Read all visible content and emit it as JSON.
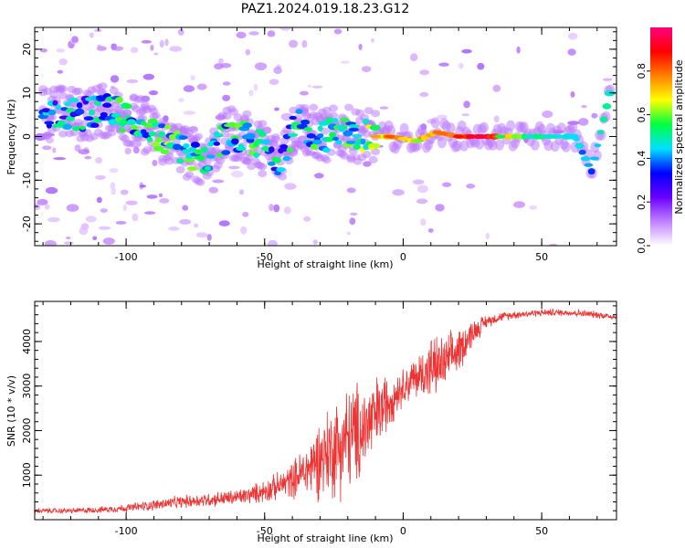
{
  "title": "PAZ1.2024.019.18.23.G12",
  "chart_data": [
    {
      "type": "heatmap",
      "xlabel": "Height of straight line (km)",
      "ylabel": "Frequency (Hz)",
      "xlim": [
        -133,
        77
      ],
      "ylim": [
        -25,
        25
      ],
      "xticks": [
        -100,
        -50,
        0,
        50
      ],
      "xtick_labels": [
        "-100",
        "-50",
        "0",
        "50"
      ],
      "yticks": [
        -20,
        -10,
        0,
        10,
        20
      ],
      "ytick_labels": [
        "-20",
        "-10",
        "0",
        "10",
        "20"
      ],
      "colorbar": {
        "label": "Normalized spectral amplitude",
        "range": [
          0,
          1
        ],
        "ticks": [
          0.0,
          0.2,
          0.4,
          0.6,
          0.8
        ],
        "tick_labels": [
          "0.0",
          "0.2",
          "0.4",
          "0.6",
          "0.8"
        ],
        "colormap": [
          "#ffffff",
          "#c080ff",
          "#6a00ff",
          "#0000ff",
          "#00e0ff",
          "#00ff40",
          "#ffff00",
          "#ff8000",
          "#ff0000",
          "#ff0080"
        ]
      },
      "ridge": [
        {
          "x": -130,
          "f": 6,
          "a": 0.35
        },
        {
          "x": -118,
          "f": 5,
          "a": 0.4
        },
        {
          "x": -105,
          "f": 6,
          "a": 0.45
        },
        {
          "x": -95,
          "f": 3,
          "a": 0.45
        },
        {
          "x": -88,
          "f": 0,
          "a": 0.5
        },
        {
          "x": -80,
          "f": -3,
          "a": 0.5
        },
        {
          "x": -72,
          "f": -5,
          "a": 0.45
        },
        {
          "x": -62,
          "f": 1,
          "a": 0.45
        },
        {
          "x": -52,
          "f": -2,
          "a": 0.5
        },
        {
          "x": -45,
          "f": -5,
          "a": 0.4
        },
        {
          "x": -38,
          "f": 3,
          "a": 0.45
        },
        {
          "x": -30,
          "f": 0,
          "a": 0.45
        },
        {
          "x": -22,
          "f": 1,
          "a": 0.45
        },
        {
          "x": -14,
          "f": 0,
          "a": 0.55
        },
        {
          "x": -5,
          "f": 0,
          "a": 0.75
        },
        {
          "x": 5,
          "f": -1,
          "a": 0.7
        },
        {
          "x": 12,
          "f": 1,
          "a": 0.75
        },
        {
          "x": 20,
          "f": 0,
          "a": 0.85
        },
        {
          "x": 30,
          "f": 0,
          "a": 0.9
        },
        {
          "x": 45,
          "f": 0,
          "a": 0.5
        },
        {
          "x": 62,
          "f": 0,
          "a": 0.45
        },
        {
          "x": 68,
          "f": -8,
          "a": 0.4
        },
        {
          "x": 75,
          "f": 11,
          "a": 0.5
        }
      ]
    },
    {
      "type": "line",
      "xlabel": "Height of straight line (km)",
      "ylabel": "SNR (10 * v/v)",
      "xlim": [
        -133,
        77
      ],
      "ylim": [
        0,
        4900
      ],
      "xticks": [
        -100,
        -50,
        0,
        50
      ],
      "xtick_labels": [
        "-100",
        "-50",
        "0",
        "50"
      ],
      "yticks": [
        1000,
        2000,
        3000,
        4000
      ],
      "ytick_labels": [
        "1000",
        "2000",
        "3000",
        "4000"
      ],
      "color": "#ee3333",
      "series": [
        {
          "x": [
            -133,
            -120,
            -110,
            -100,
            -90,
            -80,
            -70,
            -60,
            -55,
            -50,
            -45,
            -40,
            -35,
            -30,
            -25,
            -20,
            -15,
            -10,
            -5,
            0,
            5,
            10,
            15,
            20,
            25,
            30,
            35,
            40,
            50,
            60,
            70,
            77
          ],
          "values": [
            200,
            200,
            220,
            260,
            330,
            400,
            450,
            500,
            560,
            650,
            750,
            900,
            1100,
            1400,
            1600,
            1800,
            2000,
            2300,
            2700,
            3000,
            3200,
            3400,
            3500,
            3800,
            4200,
            4450,
            4550,
            4600,
            4650,
            4650,
            4600,
            4550
          ],
          "noise": [
            60,
            60,
            70,
            90,
            120,
            140,
            160,
            180,
            200,
            260,
            300,
            400,
            600,
            900,
            1100,
            1200,
            1100,
            900,
            600,
            400,
            500,
            700,
            600,
            500,
            300,
            150,
            100,
            90,
            80,
            80,
            80,
            80
          ]
        }
      ]
    }
  ]
}
